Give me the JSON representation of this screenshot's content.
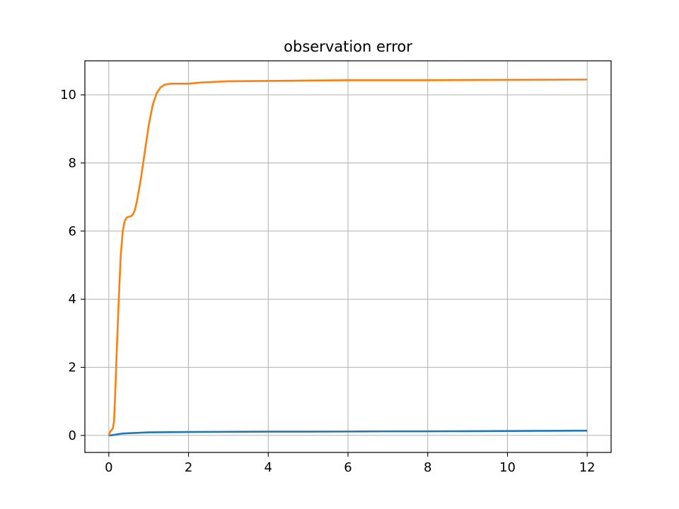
{
  "chart_data": {
    "type": "line",
    "title": "observation error",
    "xlabel": "",
    "ylabel": "",
    "xlim": [
      -0.6,
      12.6
    ],
    "ylim": [
      -0.5,
      11.0
    ],
    "grid": true,
    "legend": "none",
    "x_ticks": [
      0,
      2,
      4,
      6,
      8,
      10,
      12
    ],
    "x_tick_labels": [
      "0",
      "2",
      "4",
      "6",
      "8",
      "10",
      "12"
    ],
    "y_ticks": [
      0,
      2,
      4,
      6,
      8,
      10
    ],
    "y_tick_labels": [
      "0",
      "2",
      "4",
      "6",
      "8",
      "10"
    ],
    "series": [
      {
        "color": "#1f77b4",
        "x": [
          0,
          0.1,
          0.2,
          0.3,
          0.4,
          0.6,
          0.8,
          1.0,
          1.5,
          2.0,
          3.0,
          4.0,
          5.0,
          6.0,
          7.0,
          8.0,
          9.0,
          10.0,
          11.0,
          12.0
        ],
        "y": [
          0,
          0.01,
          0.03,
          0.05,
          0.06,
          0.07,
          0.08,
          0.09,
          0.095,
          0.1,
          0.105,
          0.11,
          0.11,
          0.115,
          0.12,
          0.12,
          0.125,
          0.13,
          0.135,
          0.14
        ]
      },
      {
        "color": "#ff7f0e",
        "x": [
          0,
          0.03,
          0.06,
          0.1,
          0.13,
          0.16,
          0.2,
          0.25,
          0.3,
          0.35,
          0.4,
          0.45,
          0.5,
          0.55,
          0.6,
          0.65,
          0.7,
          0.8,
          0.9,
          1.0,
          1.1,
          1.2,
          1.3,
          1.4,
          1.5,
          1.6,
          1.8,
          2.0,
          2.3,
          2.6,
          3.0,
          4.0,
          5.0,
          6.0,
          8.0,
          10.0,
          12.0
        ],
        "y": [
          0,
          0.1,
          0.15,
          0.2,
          0.4,
          1.2,
          2.5,
          4.0,
          5.3,
          6.0,
          6.3,
          6.4,
          6.42,
          6.43,
          6.48,
          6.6,
          6.85,
          7.5,
          8.3,
          9.1,
          9.7,
          10.05,
          10.22,
          10.3,
          10.32,
          10.33,
          10.33,
          10.33,
          10.36,
          10.38,
          10.4,
          10.41,
          10.42,
          10.43,
          10.43,
          10.44,
          10.45
        ]
      }
    ]
  }
}
